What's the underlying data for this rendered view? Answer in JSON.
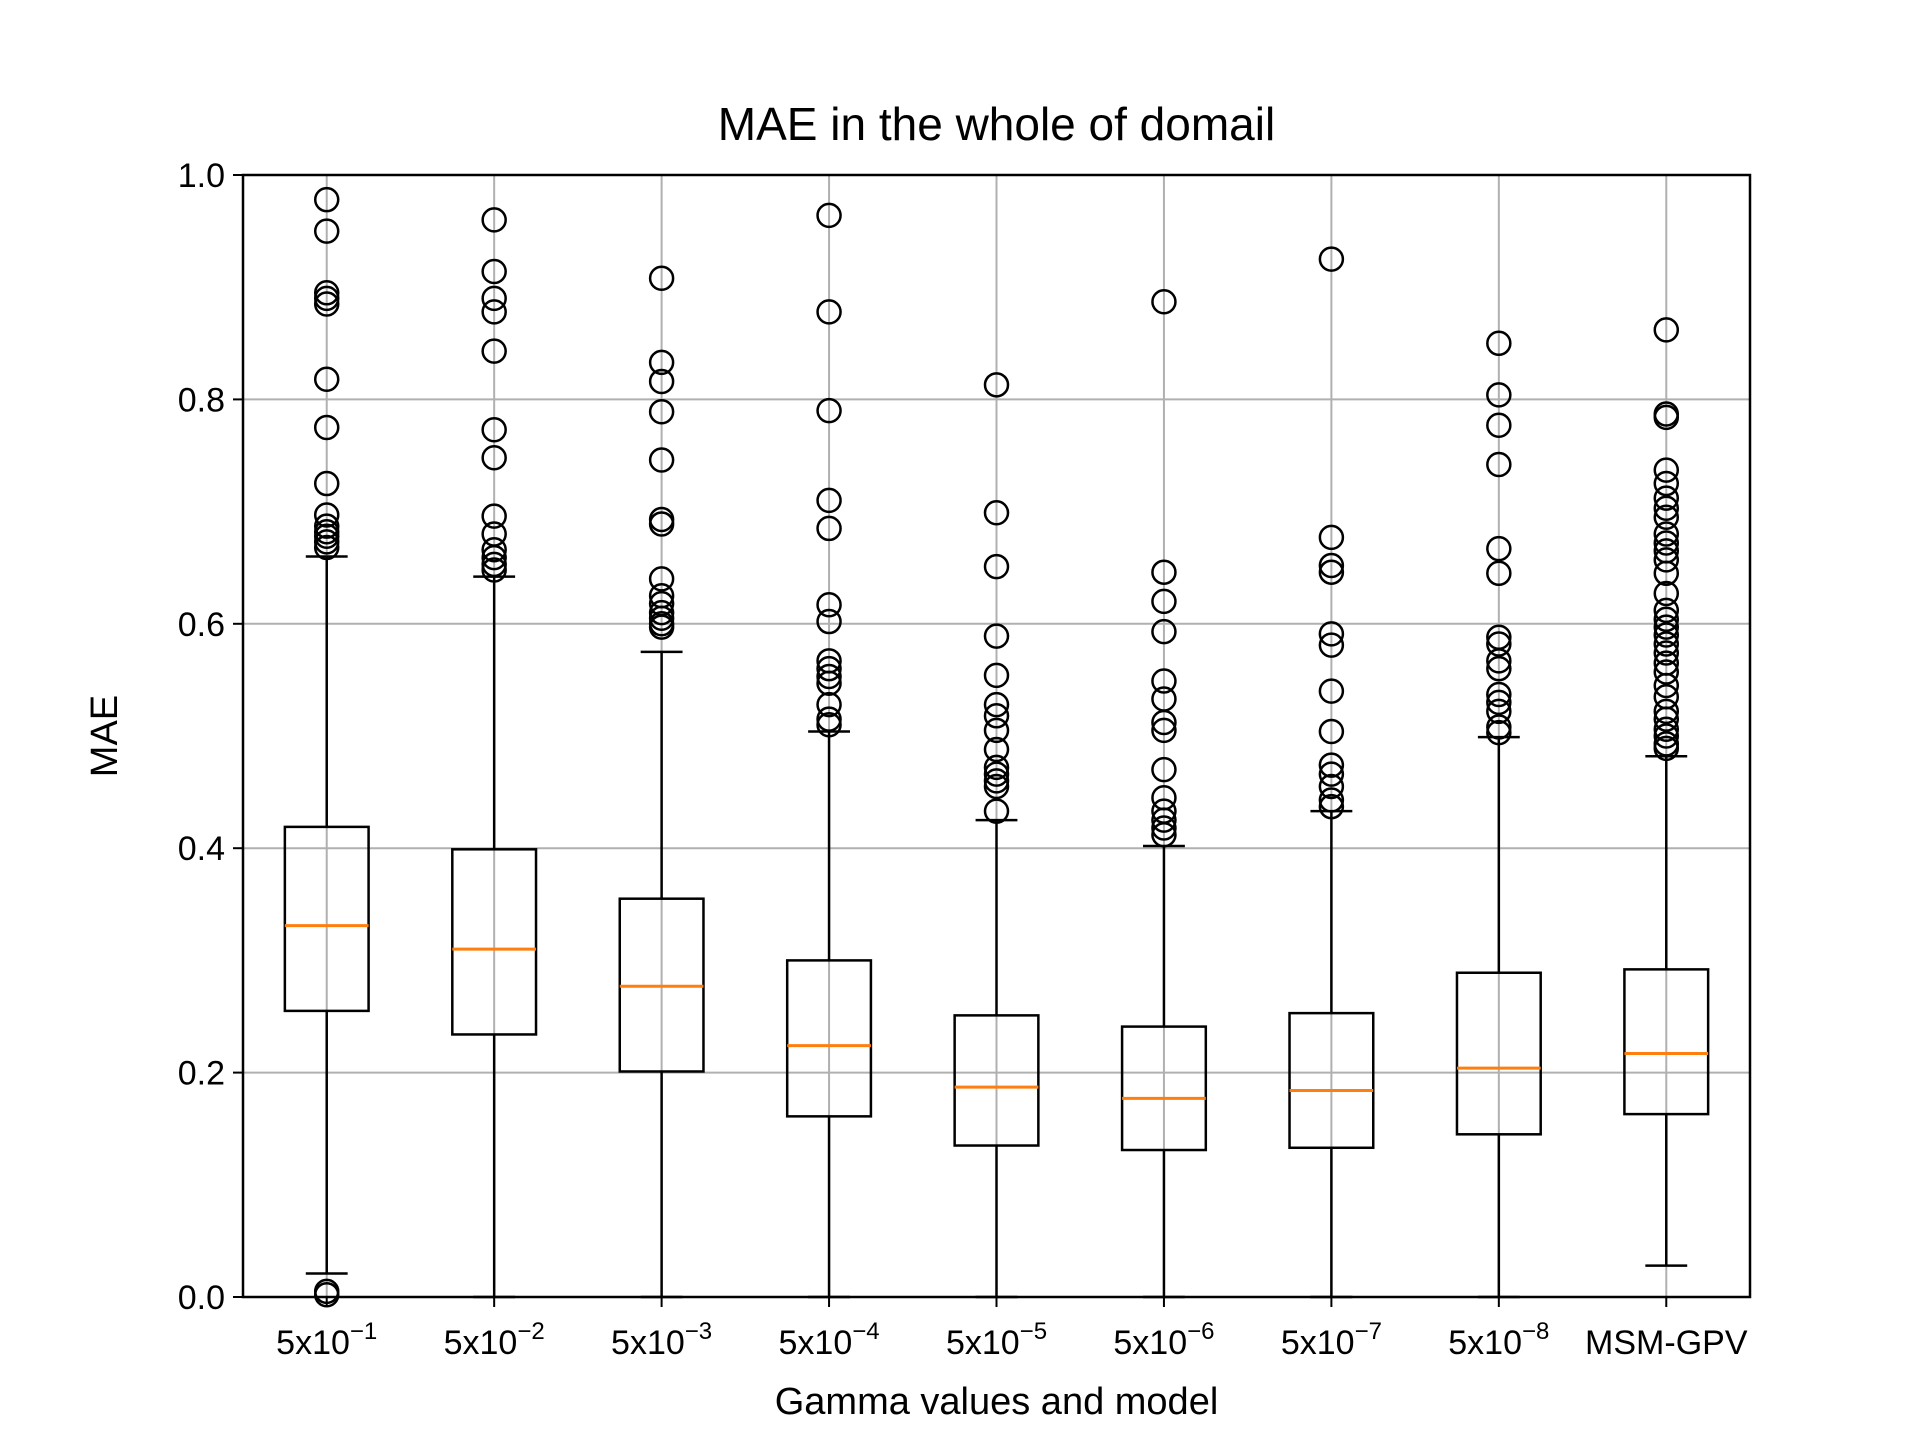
{
  "chart_data": {
    "type": "boxplot",
    "title": "MAE in the whole of domail",
    "xlabel": "Gamma values and model",
    "ylabel": "MAE",
    "ylim": [
      0.0,
      1.0
    ],
    "yticks": [
      "0.0",
      "0.2",
      "0.4",
      "0.6",
      "0.8",
      "1.0"
    ],
    "grid": true,
    "colors": {
      "box": "#000000",
      "median": "#ff7f0e",
      "grid": "#b0b0b0"
    },
    "categories": [
      {
        "base": "5x10",
        "exp": "−1"
      },
      {
        "base": "5x10",
        "exp": "−2"
      },
      {
        "base": "5x10",
        "exp": "−3"
      },
      {
        "base": "5x10",
        "exp": "−4"
      },
      {
        "base": "5x10",
        "exp": "−5"
      },
      {
        "base": "5x10",
        "exp": "−6"
      },
      {
        "base": "5x10",
        "exp": "−7"
      },
      {
        "base": "5x10",
        "exp": "−8"
      },
      {
        "base": "MSM-GPV",
        "exp": ""
      }
    ],
    "boxes": [
      {
        "whisker_low": 0.021,
        "q1": 0.255,
        "median": 0.331,
        "q3": 0.419,
        "whisker_high": 0.66,
        "fliers": [
          0.978,
          0.95,
          0.895,
          0.89,
          0.885,
          0.818,
          0.775,
          0.725,
          0.697,
          0.687,
          0.682,
          0.678,
          0.673,
          0.668,
          0.005,
          0.002
        ]
      },
      {
        "whisker_low": 0.0,
        "q1": 0.234,
        "median": 0.31,
        "q3": 0.399,
        "whisker_high": 0.642,
        "fliers": [
          0.96,
          0.914,
          0.89,
          0.878,
          0.843,
          0.773,
          0.748,
          0.696,
          0.68,
          0.666,
          0.659,
          0.653,
          0.648
        ]
      },
      {
        "whisker_low": 0.0,
        "q1": 0.201,
        "median": 0.277,
        "q3": 0.355,
        "whisker_high": 0.575,
        "fliers": [
          0.908,
          0.833,
          0.816,
          0.789,
          0.746,
          0.693,
          0.689,
          0.64,
          0.625,
          0.618,
          0.61,
          0.605,
          0.6,
          0.597
        ]
      },
      {
        "whisker_low": 0.0,
        "q1": 0.161,
        "median": 0.224,
        "q3": 0.3,
        "whisker_high": 0.504,
        "fliers": [
          0.964,
          0.878,
          0.79,
          0.71,
          0.685,
          0.617,
          0.602,
          0.567,
          0.56,
          0.553,
          0.547,
          0.528,
          0.515,
          0.51
        ]
      },
      {
        "whisker_low": 0.0,
        "q1": 0.135,
        "median": 0.187,
        "q3": 0.251,
        "whisker_high": 0.425,
        "fliers": [
          0.813,
          0.699,
          0.651,
          0.589,
          0.554,
          0.528,
          0.518,
          0.505,
          0.488,
          0.472,
          0.466,
          0.46,
          0.455,
          0.433
        ]
      },
      {
        "whisker_low": 0.0,
        "q1": 0.131,
        "median": 0.177,
        "q3": 0.241,
        "whisker_high": 0.402,
        "fliers": [
          0.887,
          0.646,
          0.62,
          0.593,
          0.549,
          0.533,
          0.512,
          0.505,
          0.47,
          0.445,
          0.433,
          0.425,
          0.418,
          0.412
        ]
      },
      {
        "whisker_low": 0.0,
        "q1": 0.133,
        "median": 0.184,
        "q3": 0.253,
        "whisker_high": 0.433,
        "fliers": [
          0.925,
          0.677,
          0.652,
          0.646,
          0.591,
          0.581,
          0.54,
          0.504,
          0.474,
          0.466,
          0.455,
          0.443,
          0.437
        ]
      },
      {
        "whisker_low": 0.0,
        "q1": 0.145,
        "median": 0.204,
        "q3": 0.289,
        "whisker_high": 0.499,
        "fliers": [
          0.85,
          0.804,
          0.777,
          0.742,
          0.667,
          0.645,
          0.588,
          0.582,
          0.567,
          0.56,
          0.537,
          0.53,
          0.522,
          0.508,
          0.503
        ]
      },
      {
        "whisker_low": 0.028,
        "q1": 0.163,
        "median": 0.217,
        "q3": 0.292,
        "whisker_high": 0.482,
        "fliers": [
          0.862,
          0.787,
          0.784,
          0.737,
          0.725,
          0.712,
          0.703,
          0.695,
          0.68,
          0.672,
          0.665,
          0.657,
          0.645,
          0.627,
          0.612,
          0.604,
          0.597,
          0.59,
          0.582,
          0.574,
          0.565,
          0.557,
          0.545,
          0.535,
          0.522,
          0.515,
          0.506,
          0.5,
          0.493,
          0.489
        ]
      }
    ]
  }
}
